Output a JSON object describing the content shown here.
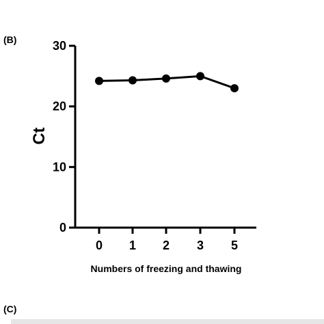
{
  "panel_labels": {
    "b": "(B)",
    "c": "(C)"
  },
  "chart_data": {
    "type": "line",
    "title": "",
    "xlabel": "Numbers of freezing and thawing",
    "ylabel": "Ct",
    "categories": [
      "0",
      "1",
      "2",
      "3",
      "5"
    ],
    "values": [
      24.2,
      24.3,
      24.6,
      25.0,
      23.0
    ],
    "yticks": [
      "0",
      "10",
      "20",
      "30"
    ],
    "ylim": [
      0,
      30
    ],
    "grid": false,
    "colors": {
      "line": "#000000",
      "marker": "#000000"
    }
  }
}
